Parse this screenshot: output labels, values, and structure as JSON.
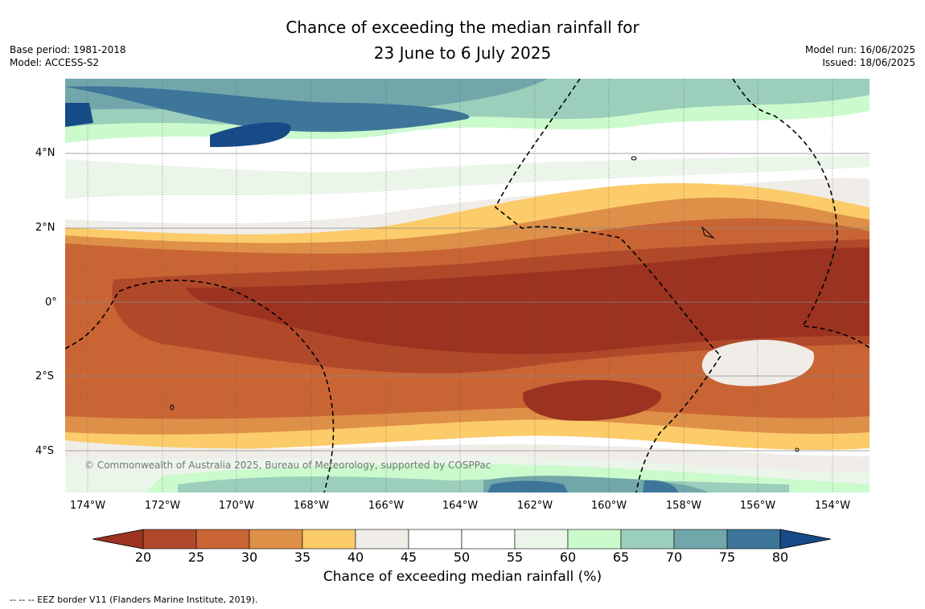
{
  "title": {
    "line1": "Chance of exceeding the median rainfall for",
    "line2": "23 June to 6 July 2025"
  },
  "meta_left": {
    "base_period": "Base period: 1981-2018",
    "model": "Model: ACCESS-S2"
  },
  "meta_right": {
    "model_run": "Model run: 16/06/2025",
    "issued": "Issued: 18/06/2025"
  },
  "credit": "© Commonwealth of Australia 2025, Bureau of Meteorology, supported by COSPPac",
  "lat_labels": [
    "4°N",
    "2°N",
    "0°",
    "2°S",
    "4°S"
  ],
  "lon_labels": [
    "174°W",
    "172°W",
    "170°W",
    "168°W",
    "166°W",
    "164°W",
    "162°W",
    "160°W",
    "158°W",
    "156°W",
    "154°W"
  ],
  "colorbar": {
    "title": "Chance of exceeding median rainfall (%)",
    "ticks": [
      "20",
      "25",
      "30",
      "35",
      "40",
      "45",
      "50",
      "55",
      "60",
      "65",
      "70",
      "75",
      "80"
    ],
    "colors": [
      "#9b3320",
      "#b0492a",
      "#c96535",
      "#de9048",
      "#fccb6a",
      "#f0ede8",
      "#ffffff",
      "#ffffff",
      "#ebf5ea",
      "#cbfacd",
      "#9ccfbb",
      "#71a7aa",
      "#3e769a",
      "#174b87"
    ]
  },
  "footnote": "--  --  -- EEZ border V11 (Flanders Marine Institute, 2019)."
}
